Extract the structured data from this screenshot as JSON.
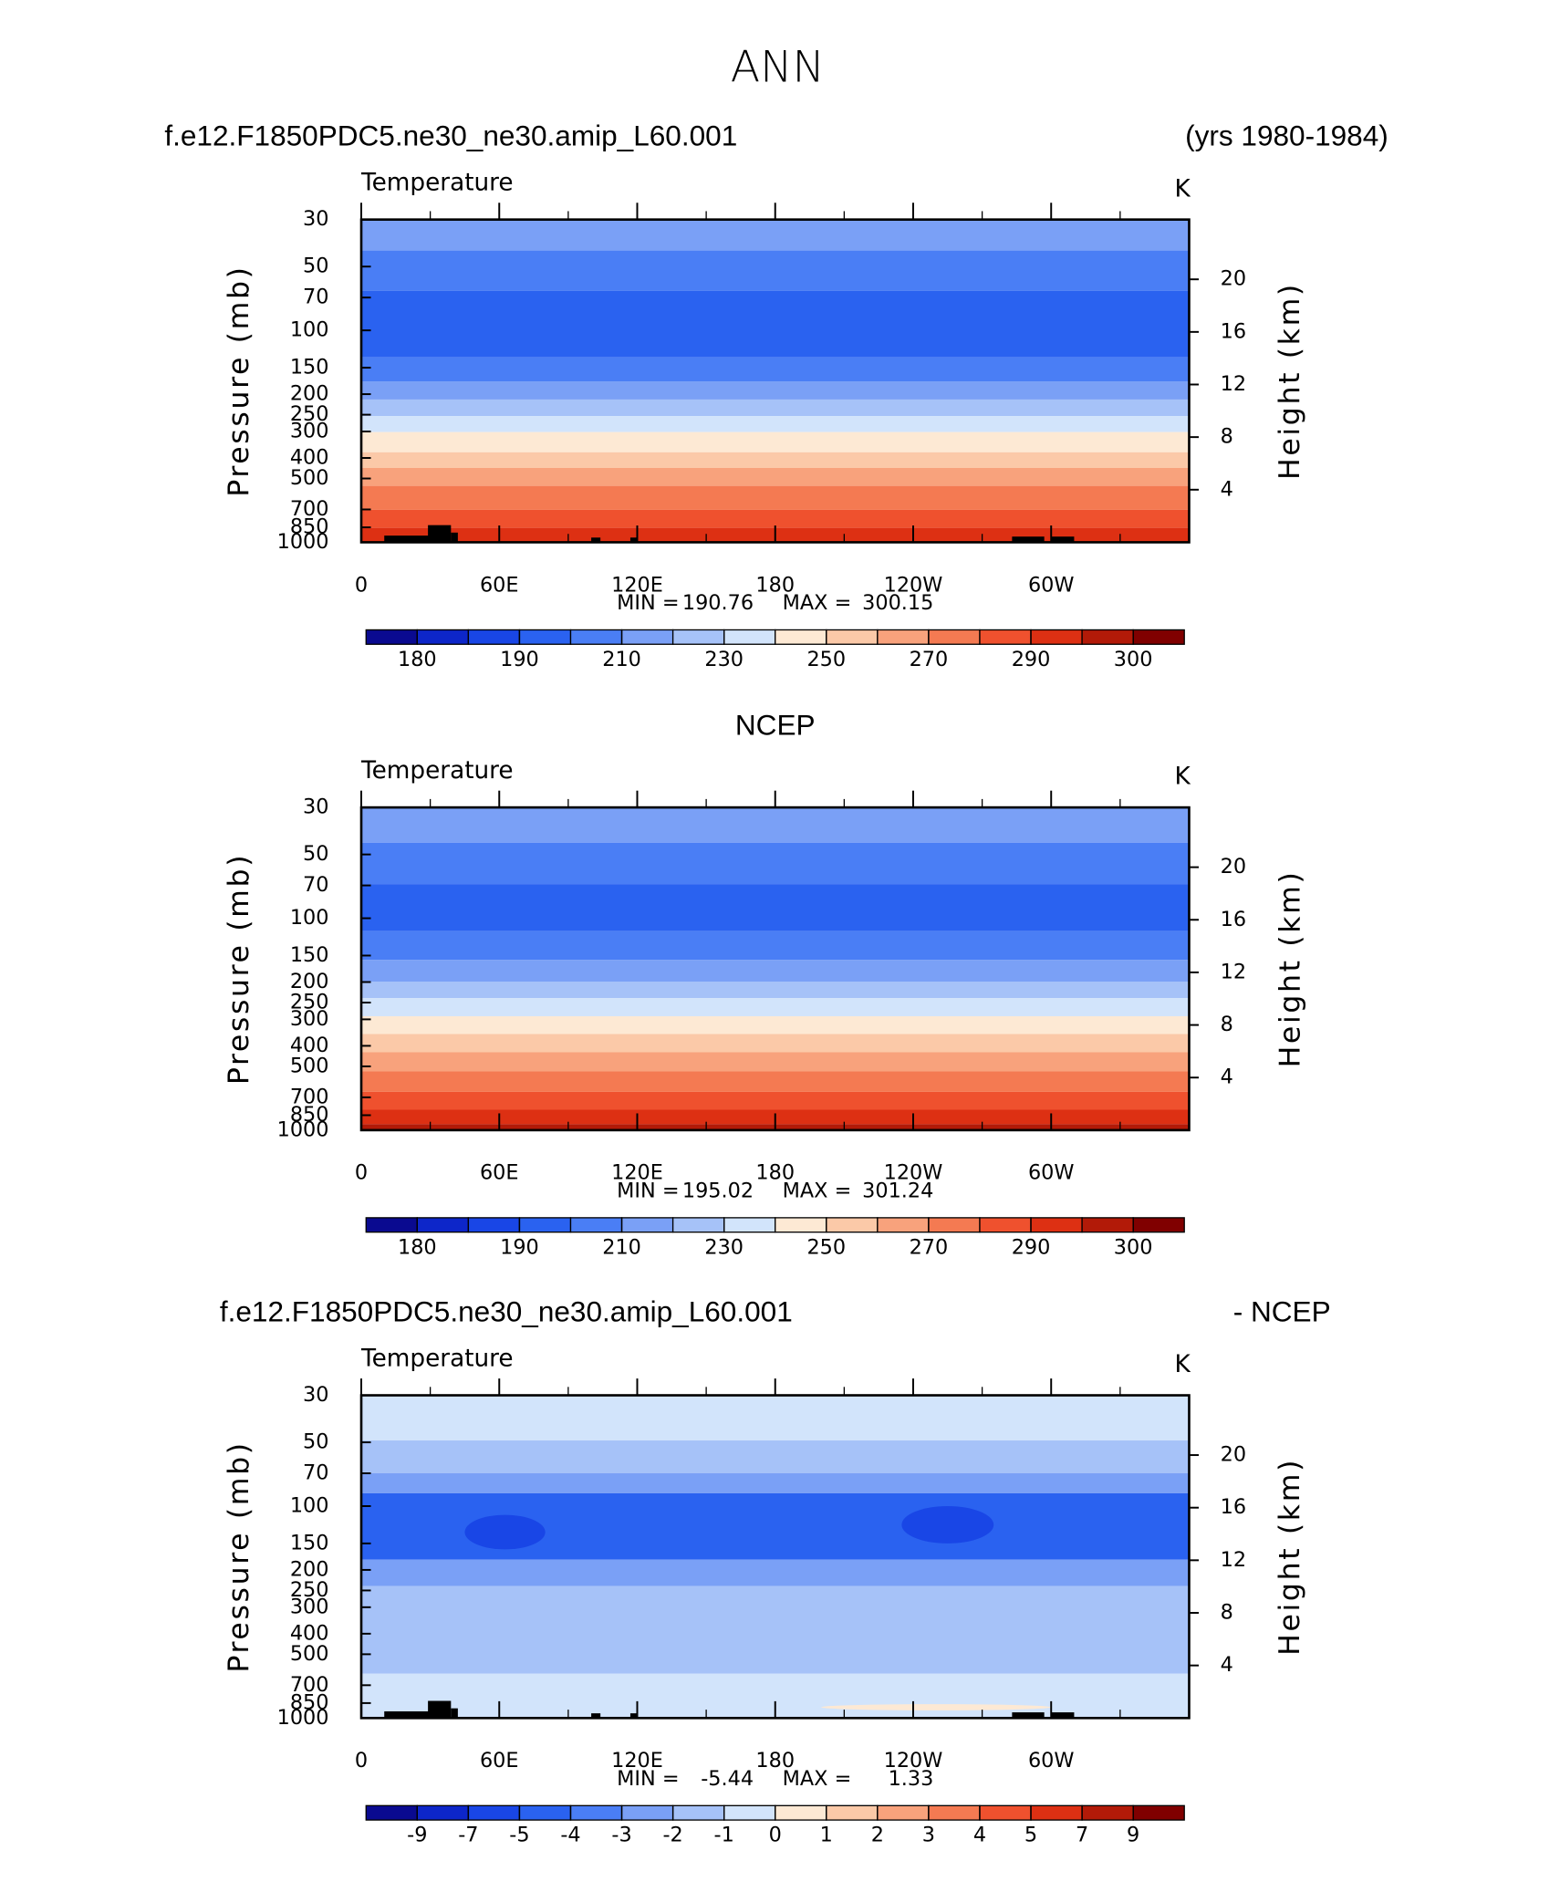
{
  "title": "ANN",
  "chart_data": [
    {
      "type": "contour",
      "title_left": "f.e12.F1850PDC5.ne30_ne30.amip_L60.001",
      "title_right": "(yrs 1980-1984)",
      "subtitle": "Temperature",
      "units": "K",
      "ylabel": "Pressure (mb)",
      "y2label": "Height (km)",
      "log_y": true,
      "xlim": [
        0,
        360
      ],
      "xticks": [
        0,
        {
          "value": 60,
          "label": "60E"
        },
        {
          "value": 120,
          "label": "120E"
        },
        180,
        {
          "value": 240,
          "label": "120W"
        },
        {
          "value": 300,
          "label": "60W"
        }
      ],
      "ylim": [
        1000,
        30
      ],
      "yticks": [
        30,
        50,
        70,
        100,
        150,
        200,
        250,
        300,
        400,
        500,
        700,
        850,
        1000
      ],
      "y2ticks": [
        4,
        8,
        12,
        16,
        20
      ],
      "min_label": "MIN =",
      "min": 190.76,
      "max_label": "MAX =",
      "max": 300.15,
      "bands": [
        {
          "top": 30,
          "bottom": 42,
          "color": "#7aa0f6"
        },
        {
          "top": 42,
          "bottom": 65,
          "color": "#4a7ef5"
        },
        {
          "top": 65,
          "bottom": 134,
          "color": "#2a62f0"
        },
        {
          "top": 134,
          "bottom": 174,
          "color": "#4a7ef5"
        },
        {
          "top": 174,
          "bottom": 212,
          "color": "#7aa0f6"
        },
        {
          "top": 212,
          "bottom": 254,
          "color": "#a6c2f8"
        },
        {
          "top": 254,
          "bottom": 302,
          "color": "#d2e4fb"
        },
        {
          "top": 302,
          "bottom": 376,
          "color": "#fde9d4"
        },
        {
          "top": 376,
          "bottom": 446,
          "color": "#fbc9a8"
        },
        {
          "top": 446,
          "bottom": 542,
          "color": "#f8a27c"
        },
        {
          "top": 542,
          "bottom": 703,
          "color": "#f47a52"
        },
        {
          "top": 703,
          "bottom": 855,
          "color": "#ef512e"
        },
        {
          "top": 855,
          "bottom": 1000,
          "color": "#dd3013"
        }
      ],
      "colorbar": {
        "colors": [
          "#0a0a90",
          "#0d26c9",
          "#1946e6",
          "#2a62f0",
          "#4a7ef5",
          "#7aa0f6",
          "#a6c2f8",
          "#d2e4fb",
          "#fde9d4",
          "#fbc9a8",
          "#f8a27c",
          "#f47a52",
          "#ef512e",
          "#dd3013",
          "#b21a08",
          "#800000"
        ],
        "ticks": [
          180,
          190,
          210,
          230,
          250,
          270,
          290,
          300
        ]
      }
    },
    {
      "type": "contour",
      "title": "NCEP",
      "subtitle": "Temperature",
      "units": "K",
      "ylabel": "Pressure (mb)",
      "y2label": "Height (km)",
      "log_y": true,
      "xlim": [
        0,
        360
      ],
      "xticks": [
        0,
        {
          "value": 60,
          "label": "60E"
        },
        {
          "value": 120,
          "label": "120E"
        },
        180,
        {
          "value": 240,
          "label": "120W"
        },
        {
          "value": 300,
          "label": "60W"
        }
      ],
      "ylim": [
        1000,
        30
      ],
      "yticks": [
        30,
        50,
        70,
        100,
        150,
        200,
        250,
        300,
        400,
        500,
        700,
        850,
        1000
      ],
      "y2ticks": [
        4,
        8,
        12,
        16,
        20
      ],
      "min_label": "MIN =",
      "min": 195.02,
      "max_label": "MAX =",
      "max": 301.24,
      "bands": [
        {
          "top": 30,
          "bottom": 44,
          "color": "#7aa0f6"
        },
        {
          "top": 44,
          "bottom": 69,
          "color": "#4a7ef5"
        },
        {
          "top": 69,
          "bottom": 115,
          "color": "#2a62f0"
        },
        {
          "top": 115,
          "bottom": 157,
          "color": "#4a7ef5"
        },
        {
          "top": 157,
          "bottom": 199,
          "color": "#7aa0f6"
        },
        {
          "top": 199,
          "bottom": 238,
          "color": "#a6c2f8"
        },
        {
          "top": 238,
          "bottom": 290,
          "color": "#d2e4fb"
        },
        {
          "top": 290,
          "bottom": 352,
          "color": "#fde9d4"
        },
        {
          "top": 352,
          "bottom": 429,
          "color": "#fbc9a8"
        },
        {
          "top": 429,
          "bottom": 528,
          "color": "#f8a27c"
        },
        {
          "top": 528,
          "bottom": 659,
          "color": "#f47a52"
        },
        {
          "top": 659,
          "bottom": 801,
          "color": "#ef512e"
        },
        {
          "top": 801,
          "bottom": 937,
          "color": "#dd3013"
        },
        {
          "top": 937,
          "bottom": 1000,
          "color": "#b21a08"
        }
      ],
      "colorbar": {
        "colors": [
          "#0a0a90",
          "#0d26c9",
          "#1946e6",
          "#2a62f0",
          "#4a7ef5",
          "#7aa0f6",
          "#a6c2f8",
          "#d2e4fb",
          "#fde9d4",
          "#fbc9a8",
          "#f8a27c",
          "#f47a52",
          "#ef512e",
          "#dd3013",
          "#b21a08",
          "#800000"
        ],
        "ticks": [
          180,
          190,
          210,
          230,
          250,
          270,
          290,
          300
        ]
      }
    },
    {
      "type": "contour",
      "title_left": "f.e12.F1850PDC5.ne30_ne30.amip_L60.001",
      "title_right": "- NCEP",
      "subtitle": "Temperature",
      "units": "K",
      "ylabel": "Pressure (mb)",
      "y2label": "Height (km)",
      "log_y": true,
      "xlim": [
        0,
        360
      ],
      "xticks": [
        0,
        {
          "value": 60,
          "label": "60E"
        },
        {
          "value": 120,
          "label": "120E"
        },
        180,
        {
          "value": 240,
          "label": "120W"
        },
        {
          "value": 300,
          "label": "60W"
        }
      ],
      "ylim": [
        1000,
        30
      ],
      "yticks": [
        30,
        50,
        70,
        100,
        150,
        200,
        250,
        300,
        400,
        500,
        700,
        850,
        1000
      ],
      "y2ticks": [
        4,
        8,
        12,
        16,
        20
      ],
      "min_label": "MIN =",
      "min": -5.44,
      "max_label": "MAX =",
      "max": 1.33,
      "bands": [
        {
          "top": 30,
          "bottom": 49,
          "color": "#d2e4fb"
        },
        {
          "top": 49,
          "bottom": 70,
          "color": "#a6c2f8"
        },
        {
          "top": 70,
          "bottom": 87,
          "color": "#7aa0f6"
        },
        {
          "top": 87,
          "bottom": 179,
          "color": "#2a62f0"
        },
        {
          "top": 179,
          "bottom": 238,
          "color": "#7aa0f6"
        },
        {
          "top": 238,
          "bottom": 618,
          "color": "#a6c2f8"
        },
        {
          "top": 618,
          "bottom": 1000,
          "color": "#d2e4fb"
        }
      ],
      "features": [
        {
          "lon": [
            45,
            80
          ],
          "p": [
            110,
            160
          ],
          "color": "#1946e6"
        },
        {
          "lon": [
            235,
            275
          ],
          "p": [
            100,
            150
          ],
          "color": "#1946e6"
        },
        {
          "lon": [
            200,
            300
          ],
          "p": [
            860,
            920
          ],
          "color": "#fde9d4"
        }
      ],
      "colorbar": {
        "colors": [
          "#0a0a90",
          "#0d26c9",
          "#1946e6",
          "#2a62f0",
          "#4a7ef5",
          "#7aa0f6",
          "#a6c2f8",
          "#d2e4fb",
          "#fde9d4",
          "#fbc9a8",
          "#f8a27c",
          "#f47a52",
          "#ef512e",
          "#dd3013",
          "#b21a08",
          "#800000"
        ],
        "ticks": [
          -9,
          -7,
          -5,
          -4,
          -3,
          -2,
          -1,
          0,
          1,
          2,
          3,
          4,
          5,
          7,
          9
        ]
      }
    }
  ]
}
